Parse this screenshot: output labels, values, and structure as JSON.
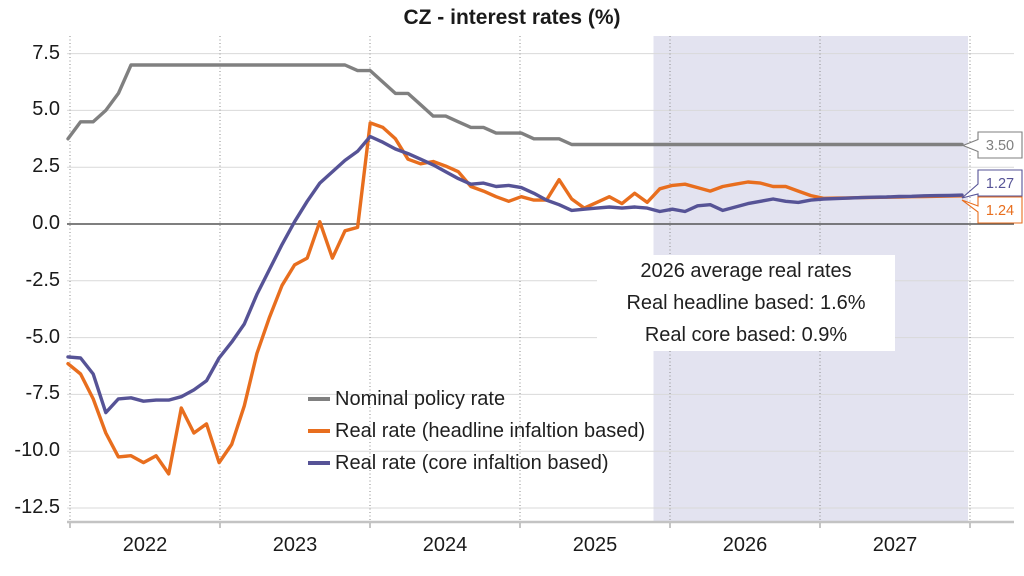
{
  "chart_data": {
    "type": "line",
    "title": "CZ - interest rates (%)",
    "x_unit": "month",
    "x_start": "2022-01",
    "x_end": "2027-12",
    "x_ticks": [
      "2022",
      "2023",
      "2024",
      "2025",
      "2026",
      "2027"
    ],
    "y_ticks": [
      "7.5",
      "5.0",
      "2.5",
      "0.0",
      "-2.5",
      "-5.0",
      "-7.5",
      "-10.0",
      "-12.5"
    ],
    "ylim": [
      -13.1,
      8.3
    ],
    "grid": true,
    "legend_position": "inside-bottom-left",
    "forecast_region": {
      "start": "2025-12",
      "end": "2027-12",
      "shading_color": "#E3E3F0"
    },
    "series": [
      {
        "name": "Nominal policy rate",
        "color": "#808080",
        "values": [
          3.75,
          4.5,
          4.5,
          5,
          5.75,
          7,
          7,
          7,
          7,
          7,
          7,
          7,
          7,
          7,
          7,
          7,
          7,
          7,
          7,
          7,
          7,
          7,
          7,
          6.75,
          6.75,
          6.25,
          5.75,
          5.75,
          5.25,
          4.75,
          4.75,
          4.5,
          4.25,
          4.25,
          4,
          4,
          4,
          3.75,
          3.75,
          3.75,
          3.5,
          3.5,
          3.5,
          3.5,
          3.5,
          3.5,
          3.5,
          3.5,
          3.5,
          3.5,
          3.5,
          3.5,
          3.5,
          3.5,
          3.5,
          3.5,
          3.5,
          3.5,
          3.5,
          3.5,
          3.5,
          3.5,
          3.5,
          3.5,
          3.5,
          3.5,
          3.5,
          3.5,
          3.5,
          3.5,
          3.5,
          3.5
        ]
      },
      {
        "name": "Real rate (headline infaltion based)",
        "color": "#E86E1E",
        "values": [
          -6.15,
          -6.6,
          -7.7,
          -9.2,
          -10.25,
          -10.2,
          -10.5,
          -10.2,
          -11,
          -8.1,
          -9.2,
          -8.8,
          -10.5,
          -9.7,
          -8,
          -5.7,
          -4.1,
          -2.7,
          -1.8,
          -1.5,
          0.1,
          -1.5,
          -0.3,
          -0.15,
          4.45,
          4.25,
          3.75,
          2.85,
          2.65,
          2.75,
          2.55,
          2.3,
          1.65,
          1.45,
          1.2,
          1,
          1.2,
          1.05,
          1.05,
          1.95,
          1.1,
          0.7,
          0.95,
          1.2,
          0.9,
          1.35,
          0.95,
          1.55,
          1.7,
          1.75,
          1.6,
          1.45,
          1.65,
          1.75,
          1.85,
          1.8,
          1.65,
          1.65,
          1.45,
          1.25,
          1.13,
          1.14,
          1.15,
          1.16,
          1.17,
          1.18,
          1.19,
          1.2,
          1.21,
          1.22,
          1.23,
          1.24
        ]
      },
      {
        "name": "Real rate (core infaltion based)",
        "color": "#565396",
        "values": [
          -5.85,
          -5.9,
          -6.6,
          -8.3,
          -7.7,
          -7.65,
          -7.8,
          -7.75,
          -7.75,
          -7.6,
          -7.3,
          -6.9,
          -5.9,
          -5.2,
          -4.4,
          -3.1,
          -2,
          -0.9,
          0.1,
          1,
          1.8,
          2.3,
          2.8,
          3.2,
          3.85,
          3.6,
          3.3,
          3.1,
          2.85,
          2.6,
          2.3,
          2,
          1.75,
          1.8,
          1.65,
          1.7,
          1.6,
          1.35,
          1.05,
          0.85,
          0.6,
          0.65,
          0.7,
          0.75,
          0.7,
          0.75,
          0.7,
          0.55,
          0.65,
          0.55,
          0.8,
          0.85,
          0.6,
          0.75,
          0.9,
          1,
          1.1,
          1,
          0.95,
          1.05,
          1.1,
          1.12,
          1.14,
          1.16,
          1.18,
          1.19,
          1.21,
          1.22,
          1.24,
          1.25,
          1.26,
          1.27
        ]
      }
    ],
    "end_labels": [
      {
        "text": "3.50",
        "color": "#7F7F7F"
      },
      {
        "text": "1.27",
        "color": "#565396"
      },
      {
        "text": "1.24",
        "color": "#E86E1E"
      }
    ],
    "annotation": {
      "lines": [
        "2026 average real rates",
        "Real headline based: 1.6%",
        "Real core based: 0.9%"
      ]
    }
  }
}
